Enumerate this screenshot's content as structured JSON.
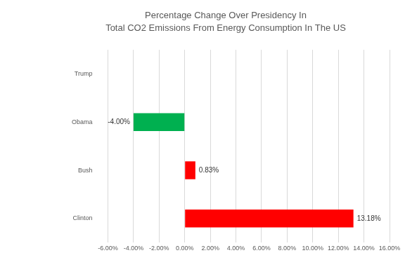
{
  "chart_data": {
    "type": "bar",
    "orientation": "horizontal",
    "title": [
      "Percentage Change Over Presidency In",
      "Total CO2 Emissions From Energy Consumption In The US"
    ],
    "categories": [
      "Trump",
      "Obama",
      "Bush",
      "Clinton"
    ],
    "values": [
      null,
      -4.0,
      0.83,
      13.18
    ],
    "value_labels": [
      null,
      "-4.00%",
      "0.83%",
      "13.18%"
    ],
    "colors": [
      null,
      "#00b050",
      "#ff0000",
      "#ff0000"
    ],
    "xlim": [
      -6,
      16
    ],
    "xticks": [
      {
        "value": -6,
        "label": "-6.00%"
      },
      {
        "value": -4,
        "label": "-4.00%"
      },
      {
        "value": -2,
        "label": "-2.00%"
      },
      {
        "value": 0,
        "label": "0.00%"
      },
      {
        "value": 2,
        "label": "2.00%"
      },
      {
        "value": 4,
        "label": "4.00%"
      },
      {
        "value": 6,
        "label": "6.00%"
      },
      {
        "value": 8,
        "label": "8.00%"
      },
      {
        "value": 10,
        "label": "10.00%"
      },
      {
        "value": 12,
        "label": "12.00%"
      },
      {
        "value": 14,
        "label": "14.00%"
      },
      {
        "value": 16,
        "label": "16.00%"
      }
    ],
    "grid": true,
    "data_labels": true
  }
}
